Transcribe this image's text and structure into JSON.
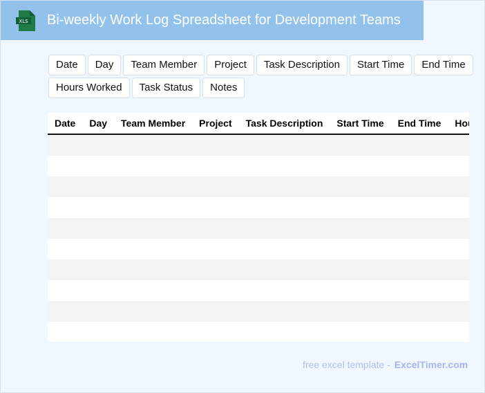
{
  "header": {
    "title": "Bi-weekly Work Log Spreadsheet for Development Teams",
    "icon": "xls-file-icon",
    "icon_label": "XLS",
    "color": "#92c1eb"
  },
  "tags": [
    "Date",
    "Day",
    "Team Member",
    "Project",
    "Task Description",
    "Start Time",
    "End Time",
    "Hours Worked",
    "Task Status",
    "Notes"
  ],
  "table": {
    "columns": [
      "Date",
      "Day",
      "Team Member",
      "Project",
      "Task Description",
      "Start Time",
      "End Time",
      "Hours Worked",
      "Task Status",
      "Notes"
    ],
    "row_count": 10
  },
  "footer": {
    "text": "free excel template -",
    "brand": "ExcelTimer.com"
  }
}
